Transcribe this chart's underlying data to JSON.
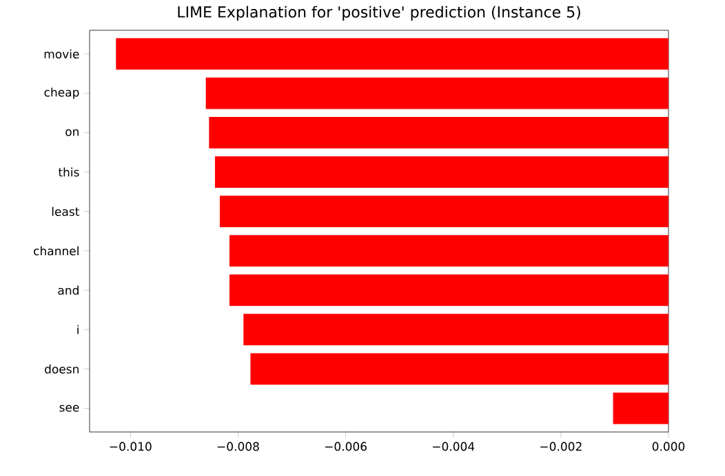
{
  "chart_data": {
    "type": "bar",
    "orientation": "horizontal",
    "title": "LIME Explanation for 'positive' prediction (Instance 5)",
    "categories": [
      "movie",
      "cheap",
      "on",
      "this",
      "least",
      "channel",
      "and",
      "i",
      "doesn",
      "see"
    ],
    "values": [
      -0.01027,
      -0.0086,
      -0.00854,
      -0.00843,
      -0.00834,
      -0.00816,
      -0.00816,
      -0.0079,
      -0.00777,
      -0.00103
    ],
    "color": "#ff0000",
    "xlim": [
      -0.01076,
      0
    ],
    "xticks": [
      {
        "value": -0.01,
        "label": "−0.010"
      },
      {
        "value": -0.008,
        "label": "−0.008"
      },
      {
        "value": -0.006,
        "label": "−0.006"
      },
      {
        "value": -0.004,
        "label": "−0.004"
      },
      {
        "value": -0.002,
        "label": "−0.002"
      },
      {
        "value": 0,
        "label": "0.000"
      }
    ],
    "grid": false
  }
}
